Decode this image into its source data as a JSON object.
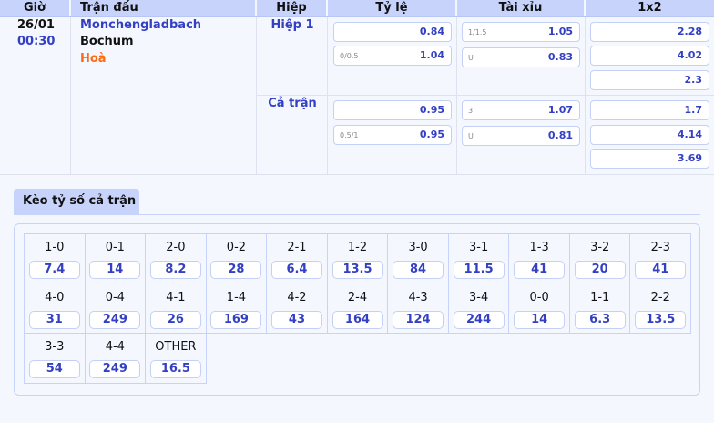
{
  "header": [
    "Giờ",
    "Trận đấu",
    "Hiệp",
    "Tỷ lệ",
    "Tài xỉu",
    "1x2"
  ],
  "match": {
    "date": "26/01",
    "time": "00:30",
    "home": "Monchengladbach",
    "away": "Bochum",
    "draw": "Hoà"
  },
  "periods": [
    {
      "label": "Hiệp 1",
      "handicap": [
        {
          "line": "",
          "odd": "0.84"
        },
        {
          "line": "0/0.5",
          "odd": "1.04"
        }
      ],
      "overunder": [
        {
          "line": "1/1.5",
          "odd": "1.05"
        },
        {
          "line": "U",
          "odd": "0.83"
        }
      ],
      "x12": [
        "2.28",
        "4.02",
        "2.3"
      ]
    },
    {
      "label": "Cả trận",
      "handicap": [
        {
          "line": "",
          "odd": "0.95"
        },
        {
          "line": "0.5/1",
          "odd": "0.95"
        }
      ],
      "overunder": [
        {
          "line": "3",
          "odd": "1.07"
        },
        {
          "line": "U",
          "odd": "0.81"
        }
      ],
      "x12": [
        "1.7",
        "4.14",
        "3.69"
      ]
    }
  ],
  "score_tab": "Kèo tỷ số cả trận",
  "scores": [
    [
      "1-0",
      "7.4"
    ],
    [
      "0-1",
      "14"
    ],
    [
      "2-0",
      "8.2"
    ],
    [
      "0-2",
      "28"
    ],
    [
      "2-1",
      "6.4"
    ],
    [
      "1-2",
      "13.5"
    ],
    [
      "3-0",
      "84"
    ],
    [
      "3-1",
      "11.5"
    ],
    [
      "1-3",
      "41"
    ],
    [
      "3-2",
      "20"
    ],
    [
      "2-3",
      "41"
    ],
    [
      "4-0",
      "31"
    ],
    [
      "0-4",
      "249"
    ],
    [
      "4-1",
      "26"
    ],
    [
      "1-4",
      "169"
    ],
    [
      "4-2",
      "43"
    ],
    [
      "2-4",
      "164"
    ],
    [
      "4-3",
      "124"
    ],
    [
      "3-4",
      "244"
    ],
    [
      "0-0",
      "14"
    ],
    [
      "1-1",
      "6.3"
    ],
    [
      "2-2",
      "13.5"
    ],
    [
      "3-3",
      "54"
    ],
    [
      "4-4",
      "249"
    ],
    [
      "OTHER",
      "16.5"
    ]
  ],
  "colors": {
    "accent": "#3340c4",
    "draw": "#ff6a13",
    "header_bg": "#c7d3fb"
  }
}
